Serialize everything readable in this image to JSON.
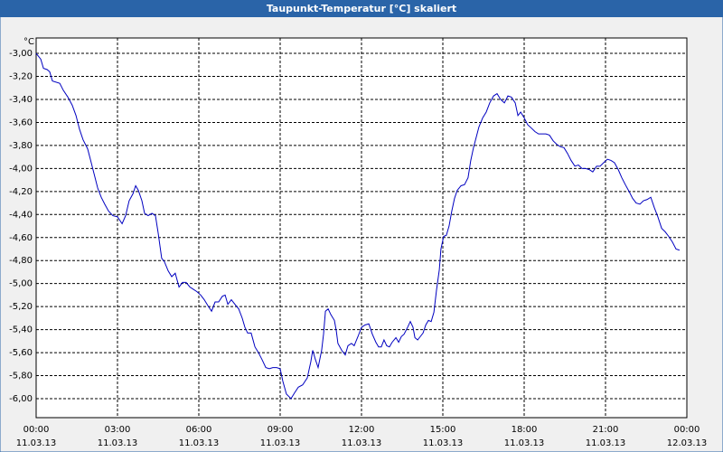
{
  "chart_data": {
    "type": "line",
    "title": "Taupunkt-Temperatur [°C] skaliert",
    "y_label": "°C",
    "x": [
      0,
      0.17,
      0.27,
      0.4,
      0.5,
      0.6,
      0.87,
      1.0,
      1.17,
      1.33,
      1.47,
      1.6,
      1.73,
      1.9,
      2.0,
      2.13,
      2.27,
      2.4,
      2.53,
      2.67,
      2.83,
      3.0,
      3.17,
      3.3,
      3.43,
      3.57,
      3.67,
      3.77,
      3.9,
      4.0,
      4.13,
      4.27,
      4.4,
      4.5,
      4.63,
      4.73,
      4.87,
      5.0,
      5.13,
      5.27,
      5.4,
      5.53,
      5.67,
      5.8,
      5.93,
      6.07,
      6.2,
      6.33,
      6.47,
      6.6,
      6.73,
      6.87,
      6.97,
      7.07,
      7.2,
      7.33,
      7.47,
      7.6,
      7.7,
      7.8,
      7.93,
      8.07,
      8.2,
      8.33,
      8.47,
      8.6,
      8.73,
      8.87,
      9.0,
      9.1,
      9.23,
      9.4,
      9.53,
      9.67,
      9.83,
      10.0,
      10.13,
      10.2,
      10.3,
      10.4,
      10.53,
      10.6,
      10.67,
      10.77,
      10.87,
      11.0,
      11.07,
      11.13,
      11.27,
      11.4,
      11.5,
      11.63,
      11.73,
      11.87,
      12.0,
      12.13,
      12.27,
      12.4,
      12.53,
      12.63,
      12.73,
      12.83,
      12.93,
      13.03,
      13.13,
      13.27,
      13.37,
      13.47,
      13.57,
      13.7,
      13.8,
      13.9,
      13.97,
      14.07,
      14.17,
      14.27,
      14.37,
      14.47,
      14.57,
      14.67,
      14.77,
      14.87,
      14.93,
      15.03,
      15.13,
      15.23,
      15.33,
      15.43,
      15.53,
      15.67,
      15.8,
      15.93,
      16.03,
      16.13,
      16.23,
      16.33,
      16.47,
      16.6,
      16.73,
      16.87,
      17.0,
      17.13,
      17.27,
      17.4,
      17.53,
      17.67,
      17.77,
      17.87,
      18.0,
      18.13,
      18.27,
      18.4,
      18.53,
      18.67,
      18.8,
      18.93,
      19.07,
      19.2,
      19.33,
      19.47,
      19.6,
      19.73,
      19.87,
      20.0,
      20.13,
      20.27,
      20.4,
      20.53,
      20.67,
      20.8,
      20.93,
      21.07,
      21.2,
      21.33,
      21.47,
      21.6,
      21.73,
      21.87,
      22.0,
      22.13,
      22.27,
      22.4,
      22.53,
      22.67,
      22.8,
      22.93,
      23.07,
      23.2,
      23.33,
      23.47,
      23.6,
      23.73
    ],
    "values": [
      -3.0,
      -3.05,
      -3.13,
      -3.14,
      -3.16,
      -3.24,
      -3.26,
      -3.32,
      -3.38,
      -3.45,
      -3.54,
      -3.66,
      -3.75,
      -3.83,
      -3.92,
      -4.04,
      -4.17,
      -4.25,
      -4.31,
      -4.37,
      -4.41,
      -4.42,
      -4.48,
      -4.41,
      -4.28,
      -4.22,
      -4.15,
      -4.19,
      -4.28,
      -4.39,
      -4.41,
      -4.39,
      -4.41,
      -4.56,
      -4.78,
      -4.81,
      -4.89,
      -4.94,
      -4.91,
      -5.03,
      -4.99,
      -4.99,
      -5.03,
      -5.05,
      -5.07,
      -5.1,
      -5.14,
      -5.19,
      -5.24,
      -5.16,
      -5.16,
      -5.11,
      -5.1,
      -5.18,
      -5.14,
      -5.18,
      -5.22,
      -5.3,
      -5.38,
      -5.43,
      -5.43,
      -5.55,
      -5.6,
      -5.66,
      -5.73,
      -5.74,
      -5.73,
      -5.73,
      -5.74,
      -5.85,
      -5.96,
      -6.0,
      -5.95,
      -5.9,
      -5.88,
      -5.82,
      -5.68,
      -5.58,
      -5.66,
      -5.73,
      -5.58,
      -5.44,
      -5.24,
      -5.22,
      -5.27,
      -5.32,
      -5.41,
      -5.52,
      -5.58,
      -5.62,
      -5.54,
      -5.52,
      -5.54,
      -5.46,
      -5.38,
      -5.36,
      -5.35,
      -5.44,
      -5.51,
      -5.55,
      -5.55,
      -5.49,
      -5.54,
      -5.55,
      -5.51,
      -5.47,
      -5.51,
      -5.46,
      -5.44,
      -5.38,
      -5.33,
      -5.38,
      -5.47,
      -5.49,
      -5.46,
      -5.43,
      -5.36,
      -5.32,
      -5.33,
      -5.25,
      -5.05,
      -4.88,
      -4.7,
      -4.59,
      -4.58,
      -4.5,
      -4.37,
      -4.26,
      -4.19,
      -4.15,
      -4.14,
      -4.08,
      -3.93,
      -3.82,
      -3.73,
      -3.64,
      -3.56,
      -3.51,
      -3.43,
      -3.37,
      -3.35,
      -3.4,
      -3.43,
      -3.37,
      -3.38,
      -3.43,
      -3.54,
      -3.51,
      -3.56,
      -3.62,
      -3.65,
      -3.68,
      -3.7,
      -3.7,
      -3.7,
      -3.71,
      -3.76,
      -3.79,
      -3.81,
      -3.82,
      -3.87,
      -3.93,
      -3.98,
      -3.97,
      -4.0,
      -4.0,
      -4.01,
      -4.03,
      -3.98,
      -3.98,
      -3.95,
      -3.92,
      -3.93,
      -3.95,
      -4.01,
      -4.08,
      -4.14,
      -4.2,
      -4.26,
      -4.3,
      -4.31,
      -4.28,
      -4.27,
      -4.25,
      -4.34,
      -4.42,
      -4.52,
      -4.55,
      -4.59,
      -4.64,
      -4.7,
      -4.71
    ],
    "color": "#0000c0",
    "xlim": [
      0,
      24
    ],
    "xticks": [
      {
        "value": 0,
        "label": "00:00",
        "date": "11.03.13"
      },
      {
        "value": 3,
        "label": "03:00",
        "date": "11.03.13"
      },
      {
        "value": 6,
        "label": "06:00",
        "date": "11.03.13"
      },
      {
        "value": 9,
        "label": "09:00",
        "date": "11.03.13"
      },
      {
        "value": 12,
        "label": "12:00",
        "date": "11.03.13"
      },
      {
        "value": 15,
        "label": "15:00",
        "date": "11.03.13"
      },
      {
        "value": 18,
        "label": "18:00",
        "date": "11.03.13"
      },
      {
        "value": 21,
        "label": "21:00",
        "date": "11.03.13"
      },
      {
        "value": 24,
        "label": "00:00",
        "date": "12.03.13"
      }
    ],
    "ylim": [
      -6.165,
      -2.866
    ],
    "yticks": [
      {
        "value": -3,
        "label": "-3,00"
      },
      {
        "value": -3.2,
        "label": "-3,20"
      },
      {
        "value": -3.4,
        "label": "-3,40"
      },
      {
        "value": -3.6,
        "label": "-3,60"
      },
      {
        "value": -3.8,
        "label": "-3,80"
      },
      {
        "value": -4,
        "label": "-4,00"
      },
      {
        "value": -4.2,
        "label": "-4,20"
      },
      {
        "value": -4.4,
        "label": "-4,40"
      },
      {
        "value": -4.6,
        "label": "-4,60"
      },
      {
        "value": -4.8,
        "label": "-4,80"
      },
      {
        "value": -5,
        "label": "-5,00"
      },
      {
        "value": -5.2,
        "label": "-5,20"
      },
      {
        "value": -5.4,
        "label": "-5,40"
      },
      {
        "value": -5.6,
        "label": "-5,60"
      },
      {
        "value": -5.8,
        "label": "-5,80"
      },
      {
        "value": -6,
        "label": "-6,00"
      }
    ],
    "grid": true
  }
}
